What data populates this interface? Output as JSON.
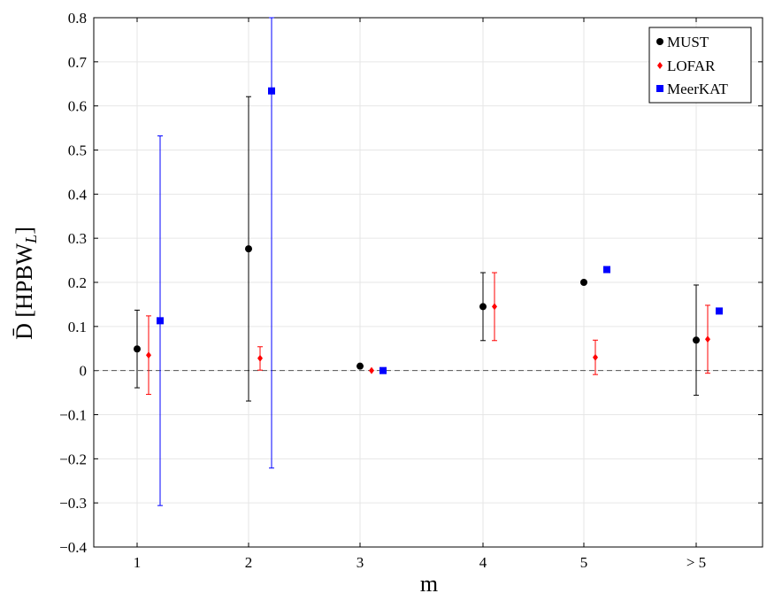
{
  "chart_data": {
    "type": "scatter",
    "xlabel": "m",
    "ylabel_main": "D̄ [HPBW",
    "ylabel_sub": "L",
    "ylabel_close": "]",
    "categories": [
      "1",
      "2",
      "3",
      "4",
      "5",
      "> 5"
    ],
    "ylim": [
      -0.4,
      0.8
    ],
    "yticks": [
      -0.4,
      -0.3,
      -0.2,
      -0.1,
      0,
      0.1,
      0.2,
      0.3,
      0.4,
      0.5,
      0.6,
      0.7,
      0.8
    ],
    "ytick_labels": [
      "−0.4",
      "−0.3",
      "−0.2",
      "−0.1",
      "0",
      "0.1",
      "0.2",
      "0.3",
      "0.4",
      "0.5",
      "0.6",
      "0.7",
      "0.8"
    ],
    "grid": true,
    "reference_line": {
      "y": 0,
      "style": "dashed"
    },
    "legend_position": "top-right",
    "series": [
      {
        "name": "MUST",
        "marker": "circle",
        "color": "#000000",
        "points": [
          {
            "x": "1",
            "y": 0.049,
            "ylow": -0.039,
            "yhigh": 0.137
          },
          {
            "x": "2",
            "y": 0.276,
            "ylow": -0.069,
            "yhigh": 0.621
          },
          {
            "x": "3",
            "y": 0.01,
            "ylow": null,
            "yhigh": null
          },
          {
            "x": "4",
            "y": 0.145,
            "ylow": 0.068,
            "yhigh": 0.222
          },
          {
            "x": "5",
            "y": 0.2,
            "ylow": null,
            "yhigh": null
          },
          {
            "x": "> 5",
            "y": 0.069,
            "ylow": -0.056,
            "yhigh": 0.194
          }
        ]
      },
      {
        "name": "LOFAR",
        "marker": "diamond",
        "color": "#ff0000",
        "points": [
          {
            "x": "1",
            "y": 0.035,
            "ylow": -0.054,
            "yhigh": 0.124
          },
          {
            "x": "2",
            "y": 0.028,
            "ylow": 0.001,
            "yhigh": 0.054
          },
          {
            "x": "3",
            "y": 0.0,
            "ylow": null,
            "yhigh": null
          },
          {
            "x": "4",
            "y": 0.145,
            "ylow": 0.068,
            "yhigh": 0.222
          },
          {
            "x": "5",
            "y": 0.03,
            "ylow": -0.009,
            "yhigh": 0.069
          },
          {
            "x": "> 5",
            "y": 0.071,
            "ylow": -0.006,
            "yhigh": 0.148
          }
        ]
      },
      {
        "name": "MeerKAT",
        "marker": "square",
        "color": "#0000ff",
        "points": [
          {
            "x": "1",
            "y": 0.113,
            "ylow": -0.306,
            "yhigh": 0.532
          },
          {
            "x": "2",
            "y": 0.634,
            "ylow": -0.221,
            "yhigh": 0.8
          },
          {
            "x": "3",
            "y": 0.0,
            "ylow": null,
            "yhigh": null
          },
          {
            "x": "4",
            "y": null,
            "ylow": null,
            "yhigh": null
          },
          {
            "x": "5",
            "y": 0.229,
            "ylow": null,
            "yhigh": null
          },
          {
            "x": "> 5",
            "y": 0.135,
            "ylow": null,
            "yhigh": null
          }
        ]
      }
    ]
  }
}
